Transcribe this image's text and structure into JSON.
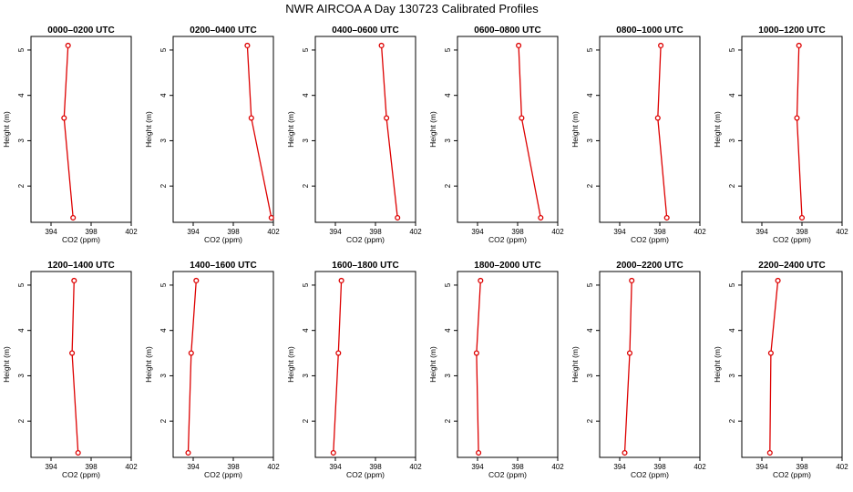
{
  "chart_data": {
    "type": "line",
    "title": "NWR AIRCOA A  Day 130723  Calibrated Profiles",
    "xlabel": "CO2 (ppm)",
    "ylabel": "Height (m)",
    "xlim": [
      392,
      402
    ],
    "ylim": [
      1.2,
      5.3
    ],
    "xticks": [
      394,
      398,
      402
    ],
    "yticks": [
      2,
      3,
      4,
      5
    ],
    "line_color": "#dd0000",
    "marker": "open-circle",
    "panels": [
      {
        "title": "0000–0200 UTC",
        "points": [
          {
            "x": 396.2,
            "y": 1.3
          },
          {
            "x": 395.3,
            "y": 3.5
          },
          {
            "x": 395.7,
            "y": 5.1
          }
        ]
      },
      {
        "title": "0200–0400 UTC",
        "points": [
          {
            "x": 401.8,
            "y": 1.3
          },
          {
            "x": 399.8,
            "y": 3.5
          },
          {
            "x": 399.4,
            "y": 5.1
          }
        ]
      },
      {
        "title": "0400–0600 UTC",
        "points": [
          {
            "x": 400.2,
            "y": 1.3
          },
          {
            "x": 399.1,
            "y": 3.5
          },
          {
            "x": 398.6,
            "y": 5.1
          }
        ]
      },
      {
        "title": "0600–0800 UTC",
        "points": [
          {
            "x": 400.3,
            "y": 1.3
          },
          {
            "x": 398.4,
            "y": 3.5
          },
          {
            "x": 398.1,
            "y": 5.1
          }
        ]
      },
      {
        "title": "0800–1000 UTC",
        "points": [
          {
            "x": 398.7,
            "y": 1.3
          },
          {
            "x": 397.8,
            "y": 3.5
          },
          {
            "x": 398.1,
            "y": 5.1
          }
        ]
      },
      {
        "title": "1000–1200 UTC",
        "points": [
          {
            "x": 398.0,
            "y": 1.3
          },
          {
            "x": 397.5,
            "y": 3.5
          },
          {
            "x": 397.7,
            "y": 5.1
          }
        ]
      },
      {
        "title": "1200–1400 UTC",
        "points": [
          {
            "x": 396.7,
            "y": 1.3
          },
          {
            "x": 396.1,
            "y": 3.5
          },
          {
            "x": 396.3,
            "y": 5.1
          }
        ]
      },
      {
        "title": "1400–1600 UTC",
        "points": [
          {
            "x": 393.5,
            "y": 1.3
          },
          {
            "x": 393.8,
            "y": 3.5
          },
          {
            "x": 394.3,
            "y": 5.1
          }
        ]
      },
      {
        "title": "1600–1800 UTC",
        "points": [
          {
            "x": 393.8,
            "y": 1.3
          },
          {
            "x": 394.3,
            "y": 3.5
          },
          {
            "x": 394.6,
            "y": 5.1
          }
        ]
      },
      {
        "title": "1800–2000 UTC",
        "points": [
          {
            "x": 394.1,
            "y": 1.3
          },
          {
            "x": 393.9,
            "y": 3.5
          },
          {
            "x": 394.3,
            "y": 5.1
          }
        ]
      },
      {
        "title": "2000–2200 UTC",
        "points": [
          {
            "x": 394.5,
            "y": 1.3
          },
          {
            "x": 395.0,
            "y": 3.5
          },
          {
            "x": 395.2,
            "y": 5.1
          }
        ]
      },
      {
        "title": "2200–2400 UTC",
        "points": [
          {
            "x": 394.8,
            "y": 1.3
          },
          {
            "x": 394.9,
            "y": 3.5
          },
          {
            "x": 395.6,
            "y": 5.1
          }
        ]
      }
    ]
  }
}
